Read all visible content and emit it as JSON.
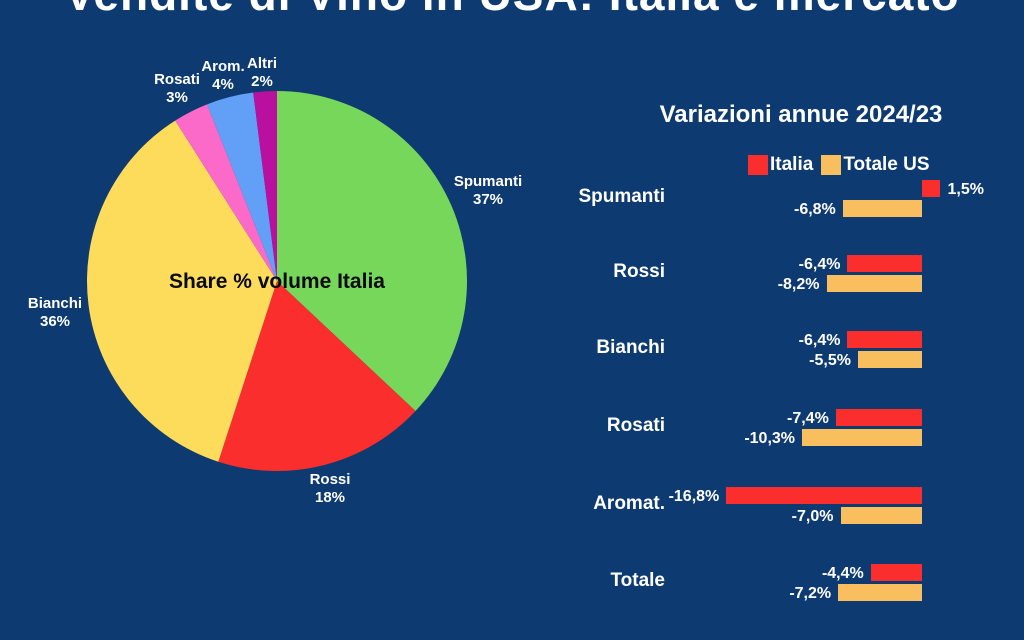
{
  "page": {
    "background_color": "#0E3A72",
    "top_title_partial": "Vendite di Vino in USA: Italia e mercato"
  },
  "chart_data": [
    {
      "type": "pie",
      "title": "Share % volume Italia",
      "start_angle_deg": 0,
      "direction": "clockwise",
      "slices": [
        {
          "label": "Spumanti",
          "pct_label": "37%",
          "value": 37,
          "color": "#77D75B"
        },
        {
          "label": "Rossi",
          "pct_label": "18%",
          "value": 18,
          "color": "#FA2E2C"
        },
        {
          "label": "Bianchi",
          "pct_label": "36%",
          "value": 36,
          "color": "#FDDC5C"
        },
        {
          "label": "Rosati",
          "pct_label": "3%",
          "value": 3,
          "color": "#FB6AC8"
        },
        {
          "label": "Arom.",
          "pct_label": "4%",
          "value": 4,
          "color": "#62A0F8"
        },
        {
          "label": "Altri",
          "pct_label": "2%",
          "value": 2,
          "color": "#BA10A0"
        }
      ]
    },
    {
      "type": "bar",
      "orientation": "horizontal",
      "title": "Variazioni annue 2024/23",
      "unit": "%",
      "legend_position": "top",
      "categories": [
        "Spumanti",
        "Rossi",
        "Bianchi",
        "Rosati",
        "Aromat.",
        "Totale"
      ],
      "series": [
        {
          "name": "Italia",
          "color": "#FA2E2C",
          "values": [
            1.5,
            -6.4,
            -6.4,
            -7.4,
            -16.8,
            -4.4
          ],
          "value_labels": [
            "1,5%",
            "-6,4%",
            "-6,4%",
            "-7,4%",
            "-16,8%",
            "-4,4%"
          ]
        },
        {
          "name": "Totale US",
          "color": "#F9BE5D",
          "values": [
            -6.8,
            -8.2,
            -5.5,
            -10.3,
            -7.0,
            -7.2
          ],
          "value_labels": [
            "-6,8%",
            "-8,2%",
            "-5,5%",
            "-10,3%",
            "-7,0%",
            "-7,2%"
          ]
        }
      ]
    }
  ]
}
